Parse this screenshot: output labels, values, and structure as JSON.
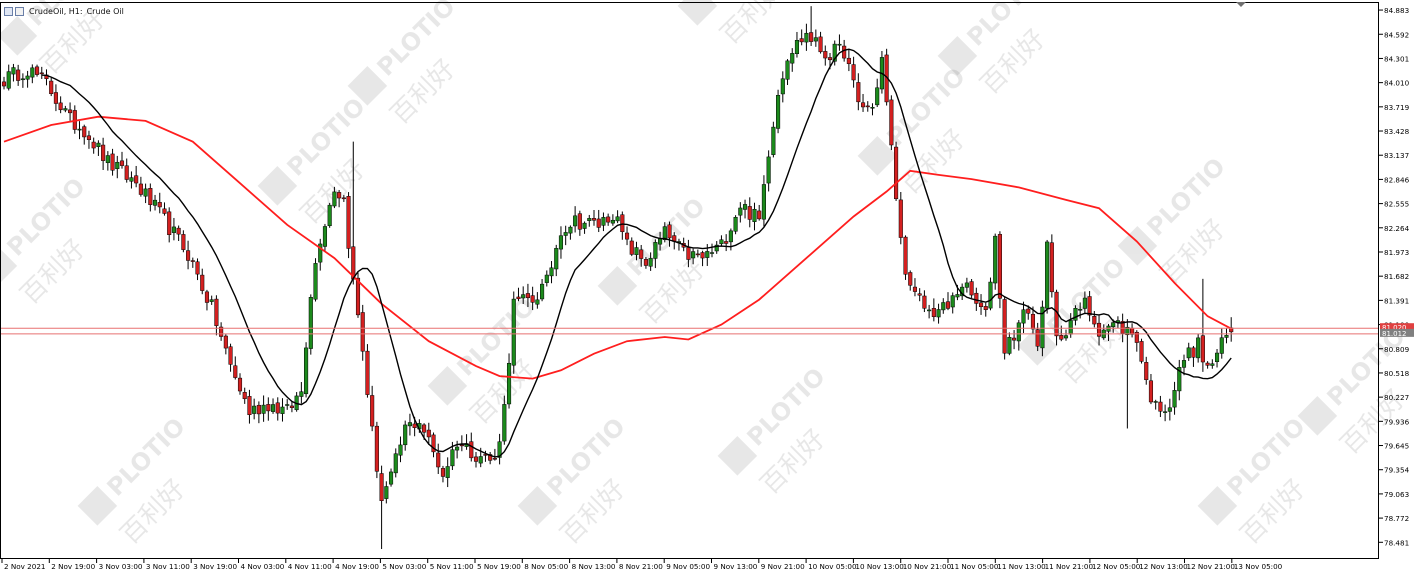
{
  "header": {
    "symbol_text": "CrudeOil, H1:",
    "description": "Crude Oil"
  },
  "watermark_text": "PLOTIO",
  "watermark_cjk": "百利好",
  "colors": {
    "bull": "#1c8a1c",
    "bear": "#d42020",
    "ma_fast": "#000000",
    "ma_slow": "#ff1e1e",
    "price_line": "#e87070",
    "axis": "#000000",
    "badge_bg": "#e04040",
    "badge_bg2": "#808080"
  },
  "chart_data": {
    "type": "candlestick",
    "symbol": "CrudeOil",
    "timeframe": "H1",
    "ylim": [
      78.28,
      84.98
    ],
    "y_ticks": [
      78.481,
      78.772,
      79.063,
      79.354,
      79.645,
      79.936,
      80.227,
      80.518,
      80.809,
      81.1,
      81.391,
      81.682,
      81.973,
      82.264,
      82.555,
      82.846,
      83.137,
      83.428,
      83.719,
      84.01,
      84.301,
      84.592,
      84.883
    ],
    "x_ticks": [
      "2 Nov 2021",
      "2 Nov 19:00",
      "3 Nov 03:00",
      "3 Nov 11:00",
      "3 Nov 19:00",
      "4 Nov 03:00",
      "4 Nov 11:00",
      "4 Nov 19:00",
      "5 Nov 03:00",
      "5 Nov 11:00",
      "5 Nov 19:00",
      "8 Nov 05:00",
      "8 Nov 13:00",
      "8 Nov 21:00",
      "9 Nov 05:00",
      "9 Nov 13:00",
      "9 Nov 21:00",
      "10 Nov 05:00",
      "10 Nov 13:00",
      "10 Nov 21:00",
      "11 Nov 05:00",
      "11 Nov 13:00",
      "11 Nov 21:00",
      "12 Nov 05:00",
      "12 Nov 13:00",
      "12 Nov 21:00",
      "13 Nov 05:00"
    ],
    "current_price": {
      "ask": 81.02,
      "bid": 81.012,
      "labels": [
        "81.020",
        "81.012"
      ]
    },
    "indicators": [
      {
        "type": "moving_average",
        "color": "black"
      },
      {
        "type": "moving_average",
        "color": "red"
      }
    ],
    "anchors": [
      [
        0,
        84.05
      ],
      [
        5,
        84.18
      ],
      [
        9,
        84.0
      ],
      [
        14,
        83.55
      ],
      [
        17,
        83.45
      ],
      [
        22,
        83.05
      ],
      [
        28,
        82.8
      ],
      [
        34,
        82.35
      ],
      [
        39,
        81.95
      ],
      [
        44,
        81.3
      ],
      [
        48,
        80.6
      ],
      [
        52,
        80.05
      ],
      [
        56,
        80.15
      ],
      [
        60,
        80.05
      ],
      [
        63,
        80.3
      ],
      [
        65,
        81.5
      ],
      [
        67,
        82.15
      ],
      [
        70,
        82.75
      ],
      [
        72,
        82.6
      ],
      [
        74,
        81.6
      ],
      [
        76,
        80.8
      ],
      [
        78,
        79.8
      ],
      [
        80,
        79.0
      ],
      [
        82,
        79.25
      ],
      [
        85,
        79.85
      ],
      [
        88,
        79.95
      ],
      [
        93,
        79.3
      ],
      [
        96,
        79.7
      ],
      [
        100,
        79.55
      ],
      [
        104,
        79.45
      ],
      [
        106,
        80.1
      ],
      [
        108,
        81.35
      ],
      [
        112,
        81.4
      ],
      [
        115,
        81.6
      ],
      [
        118,
        82.25
      ],
      [
        121,
        82.35
      ],
      [
        126,
        82.3
      ],
      [
        129,
        82.45
      ],
      [
        132,
        82.05
      ],
      [
        136,
        81.85
      ],
      [
        140,
        82.2
      ],
      [
        144,
        81.95
      ],
      [
        148,
        81.9
      ],
      [
        152,
        82.05
      ],
      [
        156,
        82.55
      ],
      [
        160,
        82.35
      ],
      [
        162,
        83.2
      ],
      [
        164,
        83.9
      ],
      [
        166,
        84.35
      ],
      [
        170,
        84.6
      ],
      [
        174,
        84.35
      ],
      [
        178,
        84.4
      ],
      [
        181,
        83.75
      ],
      [
        184,
        83.7
      ],
      [
        186,
        84.3
      ],
      [
        188,
        83.2
      ],
      [
        190,
        82.1
      ],
      [
        192,
        81.5
      ],
      [
        196,
        81.25
      ],
      [
        200,
        81.3
      ],
      [
        203,
        81.6
      ],
      [
        206,
        81.35
      ],
      [
        208,
        81.2
      ],
      [
        210,
        82.15
      ],
      [
        212,
        80.8
      ],
      [
        215,
        81.1
      ],
      [
        217,
        81.3
      ],
      [
        219,
        80.8
      ],
      [
        221,
        82.0
      ],
      [
        223,
        80.9
      ],
      [
        226,
        81.15
      ],
      [
        229,
        81.35
      ],
      [
        232,
        81.05
      ],
      [
        236,
        81.1
      ],
      [
        240,
        80.95
      ],
      [
        242,
        80.4
      ],
      [
        244,
        80.1
      ],
      [
        247,
        80.15
      ],
      [
        250,
        80.7
      ],
      [
        253,
        80.85
      ],
      [
        255,
        80.55
      ],
      [
        258,
        80.85
      ],
      [
        260,
        81.05
      ]
    ]
  }
}
